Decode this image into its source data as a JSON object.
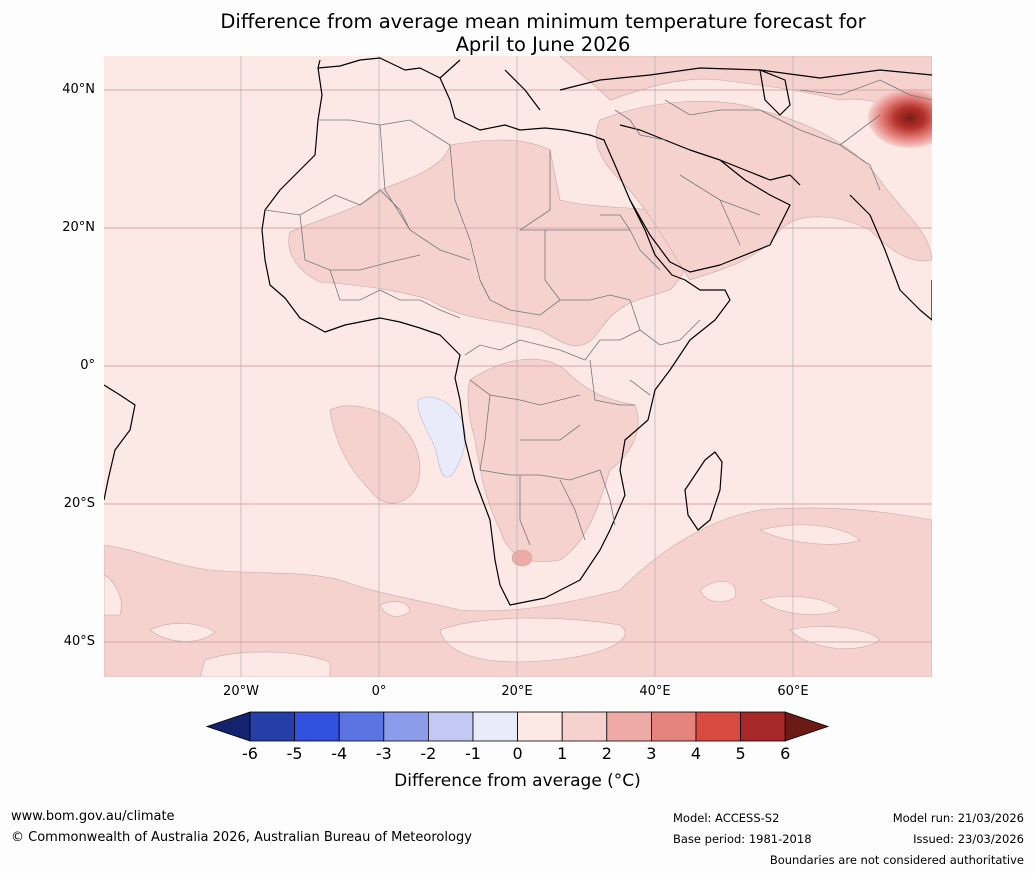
{
  "title": {
    "line1": "Difference from average mean minimum temperature forecast for",
    "line2": "April to June 2026"
  },
  "map": {
    "lat_labels": [
      "40°N",
      "20°N",
      "0°",
      "20°S",
      "40°S"
    ],
    "lon_labels": [
      "20°W",
      "0°",
      "20°E",
      "40°E",
      "60°E"
    ]
  },
  "colorbar": {
    "title": "Difference from average (°C)",
    "ticks": [
      "-6",
      "-5",
      "-4",
      "-3",
      "-2",
      "-1",
      "0",
      "1",
      "2",
      "3",
      "4",
      "5",
      "6"
    ],
    "colors": [
      "#14236e",
      "#263ea8",
      "#3250de",
      "#5c74e2",
      "#8c9cea",
      "#c3c9f2",
      "#e9eafa",
      "#fce9e6",
      "#f6d2cf",
      "#edaaa6",
      "#e5837d",
      "#d94b41",
      "#a8282a",
      "#6b1a16"
    ]
  },
  "footer": {
    "website": "www.bom.gov.au/climate",
    "copyright": "© Commonwealth of Australia 2026, Australian Bureau of Meteorology",
    "model": "Model: ACCESS-S2",
    "base_period": "Base period: 1981-2018",
    "model_run": "Model run: 21/03/2026",
    "issued": "Issued: 23/03/2026",
    "disclaimer": "Boundaries are not considered authoritative"
  }
}
